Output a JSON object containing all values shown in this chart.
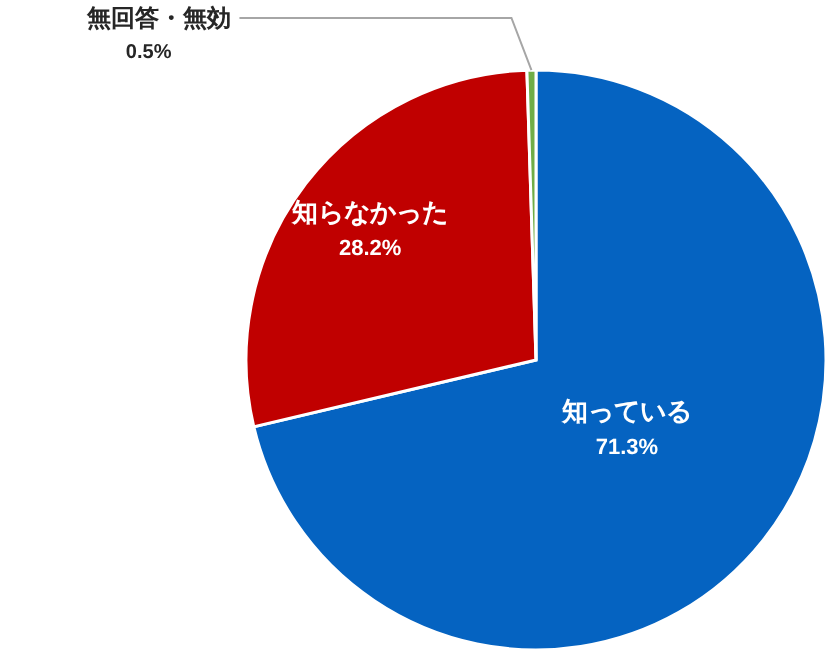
{
  "chart_data": {
    "type": "pie",
    "categories": [
      "知っている",
      "知らなかった",
      "無回答・無効"
    ],
    "values": [
      71.3,
      28.2,
      0.5
    ],
    "value_labels": [
      "71.3%",
      "28.2%",
      "0.5%"
    ],
    "colors": [
      "#0563c1",
      "#c00000",
      "#70ad47"
    ]
  }
}
